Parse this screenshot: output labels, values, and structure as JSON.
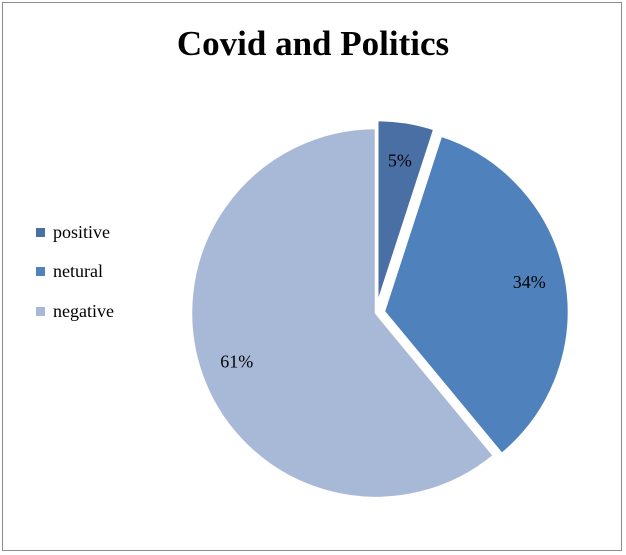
{
  "chart_data": {
    "type": "pie",
    "title": "Covid and Politics",
    "categories": [
      "positive",
      "netural",
      "negative"
    ],
    "values": [
      5,
      34,
      61
    ],
    "labels": [
      "5%",
      "34%",
      "61%"
    ],
    "colors": [
      "#4a6fa5",
      "#4f81bd",
      "#a8b9d8"
    ],
    "exploded": [
      true,
      true,
      false
    ],
    "legend_position": "left"
  }
}
